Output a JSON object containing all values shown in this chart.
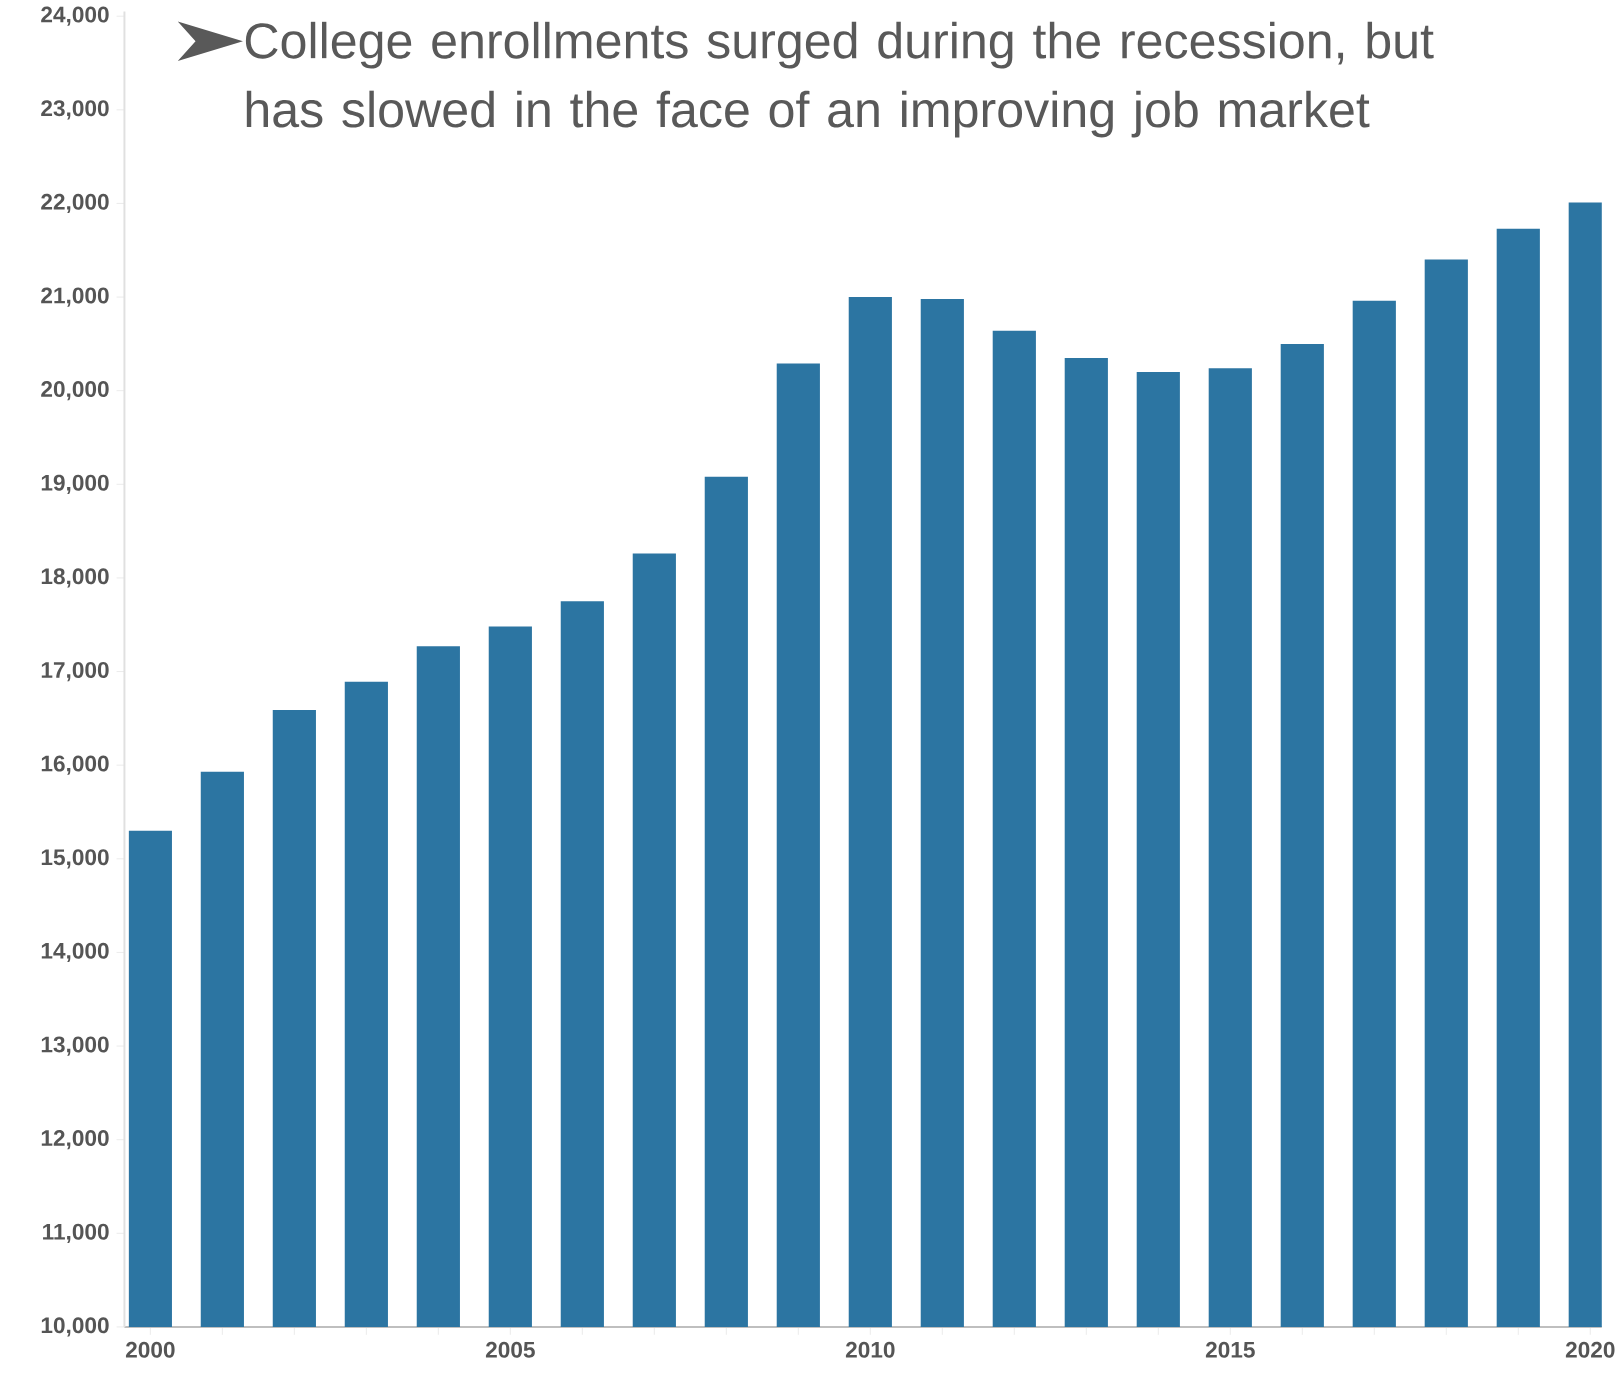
{
  "chart_data": {
    "type": "bar",
    "title": "College enrollments surged during the recession, but has slowed in the face of an improving job market",
    "x": [
      2000,
      2001,
      2002,
      2003,
      2004,
      2005,
      2006,
      2007,
      2008,
      2009,
      2010,
      2011,
      2012,
      2013,
      2014,
      2015,
      2016,
      2017,
      2018,
      2019,
      2020
    ],
    "values": [
      15300,
      15930,
      16590,
      16890,
      17270,
      17480,
      17750,
      18260,
      19080,
      20290,
      21000,
      20980,
      20640,
      20350,
      20200,
      20240,
      20500,
      20960,
      21400,
      21730,
      22010
    ],
    "color": "#2c75a2",
    "xlim": [
      1999.64,
      2020.16
    ],
    "xticks": [
      2000,
      {
        "value": 2001,
        "label": null
      },
      {
        "value": 2002,
        "label": null
      },
      {
        "value": 2003,
        "label": null
      },
      {
        "value": 2004,
        "label": null
      },
      2005,
      {
        "value": 2006,
        "label": null
      },
      {
        "value": 2007,
        "label": null
      },
      {
        "value": 2008,
        "label": null
      },
      {
        "value": 2009,
        "label": null
      },
      2010,
      {
        "value": 2011,
        "label": null
      },
      {
        "value": 2012,
        "label": null
      },
      {
        "value": 2013,
        "label": null
      },
      {
        "value": 2014,
        "label": null
      },
      2015,
      {
        "value": 2016,
        "label": null
      },
      {
        "value": 2017,
        "label": null
      },
      {
        "value": 2018,
        "label": null
      },
      {
        "value": 2019,
        "label": null
      },
      2020
    ],
    "ylim": [
      10000,
      24050
    ],
    "yticks": [
      {
        "value": 10000,
        "label": "10,000"
      },
      {
        "value": 11000,
        "label": "11,000"
      },
      {
        "value": 12000,
        "label": "12,000"
      },
      {
        "value": 13000,
        "label": "13,000"
      },
      {
        "value": 14000,
        "label": "14,000"
      },
      {
        "value": 15000,
        "label": "15,000"
      },
      {
        "value": 16000,
        "label": "16,000"
      },
      {
        "value": 17000,
        "label": "17,000"
      },
      {
        "value": 18000,
        "label": "18,000"
      },
      {
        "value": 19000,
        "label": "19,000"
      },
      {
        "value": 20000,
        "label": "20,000"
      },
      {
        "value": 21000,
        "label": "21,000"
      },
      {
        "value": 22000,
        "label": "22,000"
      },
      {
        "value": 23000,
        "label": "23,000"
      },
      {
        "value": 24000,
        "label": "24,000"
      }
    ]
  }
}
